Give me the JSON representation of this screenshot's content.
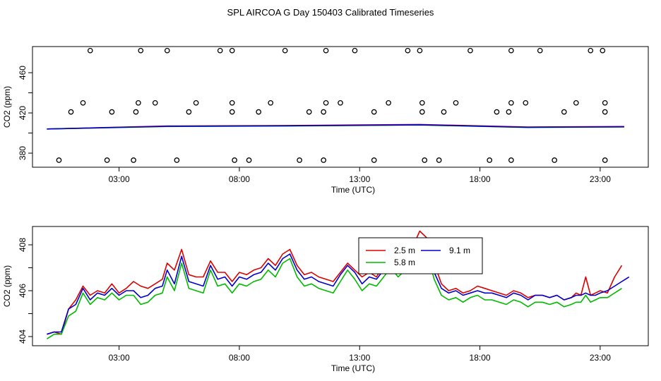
{
  "title": "SPL AIRCOA G  Day 150403  Calibrated Timeseries",
  "chart_data": [
    {
      "type": "scatter",
      "xlabel": "Time (UTC)",
      "ylabel": "CO2 (ppm)",
      "xlim": [
        -0.6,
        25.0
      ],
      "ylim": [
        366,
        486
      ],
      "xticks": [
        3,
        8,
        13,
        18,
        23
      ],
      "xtick_labels": [
        "03:00",
        "08:00",
        "13:00",
        "18:00",
        "23:00"
      ],
      "yticks": [
        380,
        420,
        460
      ],
      "yticks_minor": [
        400,
        440
      ],
      "grid": false,
      "outliers": [
        {
          "x": 1.8,
          "y": 482
        },
        {
          "x": 3.9,
          "y": 482
        },
        {
          "x": 5.0,
          "y": 482
        },
        {
          "x": 7.2,
          "y": 482
        },
        {
          "x": 7.7,
          "y": 482
        },
        {
          "x": 9.9,
          "y": 482
        },
        {
          "x": 11.6,
          "y": 482
        },
        {
          "x": 12.8,
          "y": 482
        },
        {
          "x": 15.0,
          "y": 482
        },
        {
          "x": 15.5,
          "y": 482
        },
        {
          "x": 17.6,
          "y": 482
        },
        {
          "x": 19.3,
          "y": 482
        },
        {
          "x": 20.5,
          "y": 482
        },
        {
          "x": 22.6,
          "y": 482
        },
        {
          "x": 23.1,
          "y": 482
        },
        {
          "x": 1.5,
          "y": 430
        },
        {
          "x": 3.8,
          "y": 430
        },
        {
          "x": 4.5,
          "y": 430
        },
        {
          "x": 6.2,
          "y": 430
        },
        {
          "x": 7.7,
          "y": 430
        },
        {
          "x": 9.3,
          "y": 430
        },
        {
          "x": 11.6,
          "y": 430
        },
        {
          "x": 12.2,
          "y": 430
        },
        {
          "x": 14.2,
          "y": 430
        },
        {
          "x": 15.6,
          "y": 430
        },
        {
          "x": 17.0,
          "y": 430
        },
        {
          "x": 19.3,
          "y": 430
        },
        {
          "x": 19.9,
          "y": 430
        },
        {
          "x": 22.0,
          "y": 430
        },
        {
          "x": 23.2,
          "y": 430
        },
        {
          "x": 1.0,
          "y": 421
        },
        {
          "x": 2.7,
          "y": 421
        },
        {
          "x": 3.7,
          "y": 421
        },
        {
          "x": 5.9,
          "y": 421
        },
        {
          "x": 7.7,
          "y": 421
        },
        {
          "x": 8.8,
          "y": 421
        },
        {
          "x": 10.9,
          "y": 421
        },
        {
          "x": 11.5,
          "y": 421
        },
        {
          "x": 13.6,
          "y": 421
        },
        {
          "x": 15.6,
          "y": 421
        },
        {
          "x": 16.5,
          "y": 421
        },
        {
          "x": 18.7,
          "y": 421
        },
        {
          "x": 19.2,
          "y": 421
        },
        {
          "x": 21.5,
          "y": 421
        },
        {
          "x": 23.2,
          "y": 421
        },
        {
          "x": 0.5,
          "y": 373
        },
        {
          "x": 2.5,
          "y": 373
        },
        {
          "x": 3.6,
          "y": 373
        },
        {
          "x": 5.4,
          "y": 373
        },
        {
          "x": 7.8,
          "y": 373
        },
        {
          "x": 8.4,
          "y": 373
        },
        {
          "x": 10.5,
          "y": 373
        },
        {
          "x": 11.5,
          "y": 373
        },
        {
          "x": 13.6,
          "y": 373
        },
        {
          "x": 15.7,
          "y": 373
        },
        {
          "x": 16.3,
          "y": 373
        },
        {
          "x": 18.4,
          "y": 373
        },
        {
          "x": 19.3,
          "y": 373
        },
        {
          "x": 21.1,
          "y": 373
        },
        {
          "x": 23.2,
          "y": 373
        }
      ],
      "series": [
        {
          "name": "2.5 m",
          "color": "#dd0000",
          "x": [
            0.0,
            5.0,
            10.0,
            15.5,
            20.0,
            24.0
          ],
          "values": [
            404.0,
            407.0,
            407.5,
            408.5,
            406.0,
            406.5
          ]
        },
        {
          "name": "5.8 m",
          "color": "#00bb00",
          "x": [
            0.0,
            5.0,
            10.0,
            15.5,
            20.0,
            24.0
          ],
          "values": [
            404.0,
            406.5,
            407.0,
            408.0,
            405.5,
            406.0
          ]
        },
        {
          "name": "9.1 m",
          "color": "#0000cc",
          "x": [
            0.0,
            5.0,
            10.0,
            15.5,
            20.0,
            24.0
          ],
          "values": [
            404.0,
            406.7,
            407.2,
            408.2,
            405.7,
            406.2
          ]
        }
      ]
    },
    {
      "type": "line",
      "xlabel": "Time (UTC)",
      "ylabel": "CO2 (ppm)",
      "xlim": [
        -0.6,
        25.0
      ],
      "ylim": [
        403.6,
        408.8
      ],
      "xticks": [
        3,
        8,
        13,
        18,
        23
      ],
      "xtick_labels": [
        "03:00",
        "08:00",
        "13:00",
        "18:00",
        "23:00"
      ],
      "yticks": [
        404,
        406,
        408
      ],
      "yticks_minor": [
        405,
        407
      ],
      "grid": false,
      "legend": {
        "position": "top-center",
        "entries": [
          "2.5 m",
          "5.8 m",
          "9.1 m"
        ]
      },
      "series": [
        {
          "name": "2.5 m",
          "color": "#dd0000",
          "x": [
            0.0,
            0.3,
            0.6,
            0.9,
            1.2,
            1.5,
            1.8,
            2.1,
            2.4,
            2.7,
            3.0,
            3.3,
            3.6,
            3.9,
            4.2,
            4.5,
            4.8,
            5.0,
            5.3,
            5.6,
            5.9,
            6.2,
            6.5,
            6.8,
            7.1,
            7.4,
            7.7,
            8.0,
            8.3,
            8.6,
            8.9,
            9.2,
            9.5,
            9.8,
            10.1,
            10.4,
            10.7,
            11.0,
            11.3,
            11.6,
            11.9,
            12.2,
            12.5,
            12.8,
            13.1,
            13.4,
            13.7,
            14.0,
            14.3,
            14.6,
            14.9,
            15.2,
            15.5,
            15.8,
            16.1,
            16.4,
            16.7,
            17.0,
            17.3,
            17.6,
            17.9,
            18.2,
            18.5,
            18.8,
            19.1,
            19.4,
            19.7,
            20.0,
            20.3,
            20.6,
            20.9,
            21.2,
            21.5,
            21.8,
            22.0,
            22.2,
            22.4,
            22.6,
            22.8,
            23.0,
            23.3,
            23.6,
            23.9
          ],
          "values": [
            404.1,
            404.2,
            404.1,
            405.2,
            405.6,
            406.2,
            405.8,
            406.0,
            405.9,
            406.3,
            405.9,
            406.1,
            406.4,
            406.2,
            406.1,
            406.3,
            406.5,
            407.2,
            406.9,
            407.8,
            406.7,
            406.6,
            406.6,
            407.3,
            406.8,
            406.8,
            406.4,
            406.8,
            406.7,
            406.9,
            407.0,
            407.4,
            407.1,
            407.6,
            407.8,
            407.1,
            406.7,
            406.8,
            406.6,
            406.5,
            406.4,
            406.8,
            407.2,
            406.9,
            406.6,
            406.8,
            406.6,
            407.1,
            407.4,
            407.0,
            407.3,
            407.9,
            408.6,
            408.3,
            407.2,
            406.3,
            406.0,
            406.1,
            405.9,
            406.0,
            406.2,
            406.1,
            406.0,
            405.9,
            405.8,
            406.0,
            405.9,
            405.7,
            405.8,
            405.8,
            405.7,
            405.8,
            405.6,
            405.7,
            405.9,
            405.8,
            406.6,
            405.8,
            405.9,
            406.0,
            405.9,
            406.6,
            407.1
          ]
        },
        {
          "name": "5.8 m",
          "color": "#00bb00",
          "x": [
            0.0,
            0.3,
            0.6,
            0.9,
            1.2,
            1.5,
            1.8,
            2.1,
            2.4,
            2.7,
            3.0,
            3.3,
            3.6,
            3.9,
            4.2,
            4.5,
            4.8,
            5.0,
            5.3,
            5.6,
            5.9,
            6.2,
            6.5,
            6.8,
            7.1,
            7.4,
            7.7,
            8.0,
            8.3,
            8.6,
            8.9,
            9.2,
            9.5,
            9.8,
            10.1,
            10.4,
            10.7,
            11.0,
            11.3,
            11.6,
            11.9,
            12.2,
            12.5,
            12.8,
            13.1,
            13.4,
            13.7,
            14.0,
            14.3,
            14.6,
            14.9,
            15.2,
            15.5,
            15.8,
            16.1,
            16.4,
            16.7,
            17.0,
            17.3,
            17.6,
            17.9,
            18.2,
            18.5,
            18.8,
            19.1,
            19.4,
            19.7,
            20.0,
            20.3,
            20.6,
            20.9,
            21.2,
            21.5,
            21.8,
            22.0,
            22.2,
            22.4,
            22.6,
            22.8,
            23.0,
            23.3,
            23.6,
            23.9
          ],
          "values": [
            403.9,
            404.1,
            404.1,
            404.9,
            405.1,
            405.9,
            405.4,
            405.7,
            405.6,
            405.9,
            405.6,
            405.8,
            405.8,
            405.4,
            405.5,
            405.8,
            405.9,
            406.6,
            406.0,
            407.2,
            406.1,
            406.0,
            405.9,
            406.9,
            406.2,
            406.3,
            405.9,
            406.3,
            406.2,
            406.4,
            406.5,
            406.9,
            406.6,
            407.2,
            407.4,
            406.6,
            406.2,
            406.3,
            406.1,
            406.0,
            405.9,
            406.4,
            406.9,
            406.5,
            406.0,
            406.3,
            406.2,
            406.6,
            407.0,
            406.6,
            406.9,
            407.5,
            408.1,
            407.7,
            406.5,
            405.8,
            405.6,
            405.7,
            405.5,
            405.7,
            405.8,
            405.6,
            405.6,
            405.5,
            405.4,
            405.6,
            405.5,
            405.3,
            405.5,
            405.5,
            405.4,
            405.5,
            405.3,
            405.4,
            405.5,
            405.5,
            405.8,
            405.5,
            405.6,
            405.7,
            405.7,
            405.9,
            406.1
          ]
        },
        {
          "name": "9.1 m",
          "color": "#0000cc",
          "x": [
            0.0,
            0.3,
            0.6,
            0.9,
            1.2,
            1.5,
            1.8,
            2.1,
            2.4,
            2.7,
            3.0,
            3.3,
            3.6,
            3.9,
            4.2,
            4.5,
            4.8,
            5.0,
            5.3,
            5.6,
            5.9,
            6.2,
            6.5,
            6.8,
            7.1,
            7.4,
            7.7,
            8.0,
            8.3,
            8.6,
            8.9,
            9.2,
            9.5,
            9.8,
            10.1,
            10.4,
            10.7,
            11.0,
            11.3,
            11.6,
            11.9,
            12.2,
            12.5,
            12.8,
            13.1,
            13.4,
            13.7,
            14.0,
            14.3,
            14.6,
            14.9,
            15.2,
            15.5,
            15.8,
            16.1,
            16.4,
            16.7,
            17.0,
            17.3,
            17.6,
            17.9,
            18.2,
            18.5,
            18.8,
            19.1,
            19.4,
            19.7,
            20.0,
            20.3,
            20.6,
            20.9,
            21.2,
            21.5,
            21.8,
            22.0,
            22.2,
            22.4,
            22.6,
            22.8,
            23.0,
            23.3,
            23.6,
            23.9,
            24.2
          ],
          "values": [
            404.1,
            404.2,
            404.2,
            405.2,
            405.4,
            406.1,
            405.6,
            405.9,
            405.8,
            406.1,
            405.8,
            406.0,
            406.0,
            405.7,
            405.8,
            406.1,
            406.2,
            406.9,
            406.3,
            407.5,
            406.4,
            406.3,
            406.2,
            407.1,
            406.5,
            406.6,
            406.2,
            406.6,
            406.5,
            406.7,
            406.8,
            407.2,
            406.9,
            407.4,
            407.6,
            406.9,
            406.5,
            406.6,
            406.4,
            406.3,
            406.2,
            406.7,
            407.1,
            406.8,
            406.3,
            406.6,
            406.5,
            406.9,
            407.2,
            406.9,
            407.1,
            407.7,
            408.2,
            407.9,
            406.8,
            406.1,
            405.9,
            406.0,
            405.8,
            405.9,
            406.0,
            405.9,
            405.9,
            405.8,
            405.7,
            405.9,
            405.8,
            405.6,
            405.8,
            405.8,
            405.7,
            405.8,
            405.6,
            405.7,
            405.8,
            405.8,
            405.9,
            405.8,
            405.8,
            405.9,
            406.0,
            406.2,
            406.4,
            406.6
          ]
        }
      ]
    }
  ]
}
